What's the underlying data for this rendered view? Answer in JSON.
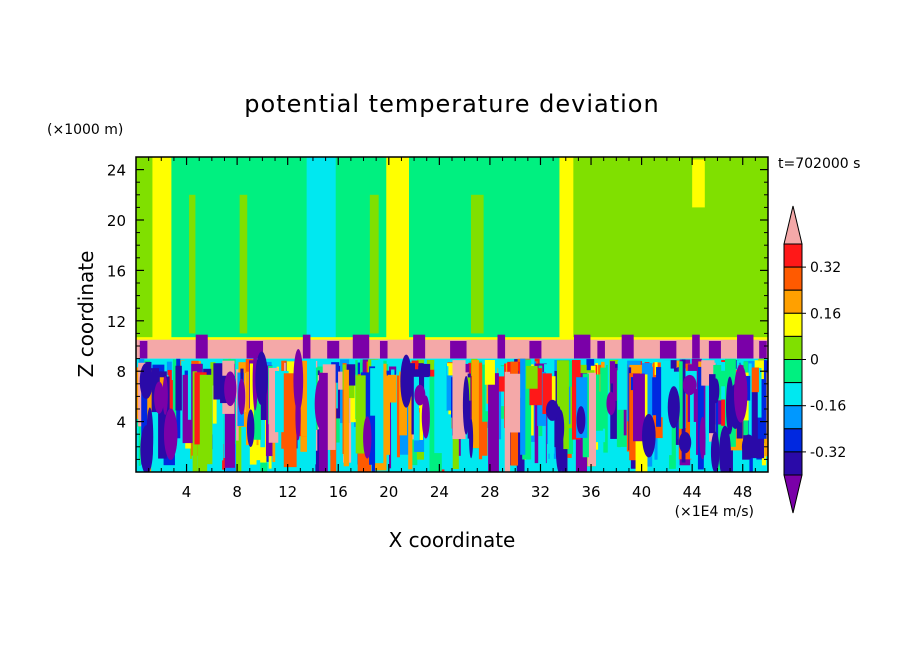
{
  "chart_data": {
    "type": "heatmap",
    "title": "potential temperature deviation",
    "xlabel": "X coordinate",
    "ylabel": "Z coordinate",
    "x_unit": "(×1E4 m/s)",
    "y_unit": "(×1000 m)",
    "time_label": "t=702000 s",
    "xlim": [
      0,
      50
    ],
    "ylim": [
      0,
      25
    ],
    "x_ticks": [
      4,
      8,
      12,
      16,
      20,
      24,
      28,
      32,
      36,
      40,
      44,
      48
    ],
    "y_ticks": [
      4,
      8,
      12,
      16,
      20,
      24
    ],
    "colorbar": {
      "levels": [
        -0.4,
        -0.32,
        -0.24,
        -0.16,
        -0.08,
        0,
        0.08,
        0.16,
        0.24,
        0.32,
        0.4
      ],
      "colors": [
        "#7a00a8",
        "#2a0aa8",
        "#0028e0",
        "#0098ff",
        "#00e8f0",
        "#00f080",
        "#80e000",
        "#ffff00",
        "#ffa000",
        "#ff5a00",
        "#ff1818",
        "#f4a8a8"
      ],
      "labels": [
        "0.32",
        "0.16",
        "0",
        "-0.16",
        "-0.32"
      ],
      "label_values": [
        0.32,
        0.16,
        0,
        -0.16,
        -0.32
      ]
    },
    "grid": false,
    "legend": "right"
  }
}
